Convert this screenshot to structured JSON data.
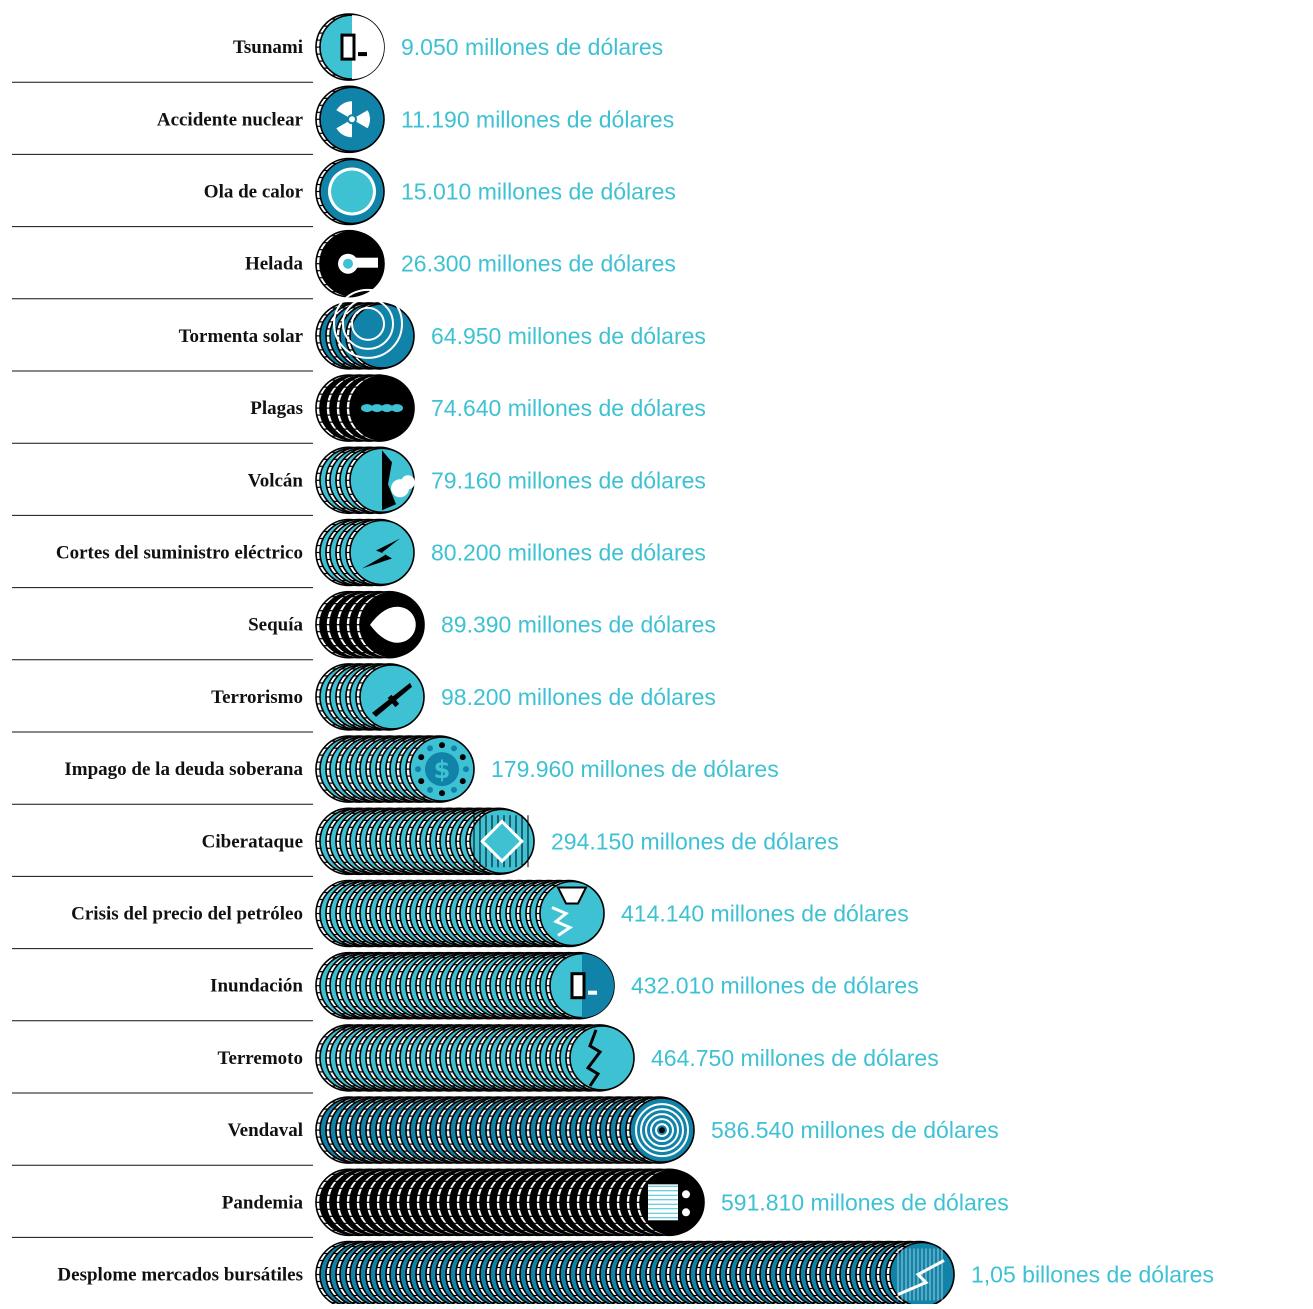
{
  "chart_data": {
    "type": "bar",
    "title": "",
    "xlabel": "",
    "ylabel": "",
    "orientation": "horizontal",
    "unit_step": 9050,
    "categories": [
      "Tsunami",
      "Accidente nuclear",
      "Ola de calor",
      "Helada",
      "Tormenta solar",
      "Plagas",
      "Volcán",
      "Cortes del suministro eléctrico",
      "Sequía",
      "Terrorismo",
      "Impago de la deuda soberana",
      "Ciberataque",
      "Crisis del precio del petróleo",
      "Inundación",
      "Terremoto",
      "Vendaval",
      "Pandemia",
      "Desplome mercados bursátiles"
    ],
    "values": [
      9050,
      11190,
      15010,
      26300,
      64950,
      74640,
      79160,
      80200,
      89390,
      98200,
      179960,
      294150,
      414140,
      432010,
      464750,
      586540,
      591810,
      1050000
    ],
    "value_labels": [
      "9.050 millones de dólares",
      "11.190 millones de dólares",
      "15.010 millones de dólares",
      "26.300 millones de dólares",
      "64.950 millones de dólares",
      "74.640 millones de dólares",
      "79.160 millones de dólares",
      "80.200 millones de dólares",
      "89.390 millones de dólares",
      "98.200 millones de dólares",
      "179.960 millones de dólares",
      "294.150 millones de dólares",
      "414.140 millones de dólares",
      "432.010 millones de dólares",
      "464.750 millones de dólares",
      "586.540 millones de dólares",
      "591.810 millones de dólares",
      "1,05 billones de dólares"
    ],
    "coin_colors": [
      "#3ec1d3",
      "#1283a8",
      "#1283a8",
      "#000000",
      "#1283a8",
      "#000000",
      "#3ec1d3",
      "#3ec1d3",
      "#000000",
      "#3ec1d3",
      "#3ec1d3",
      "#3ec1d3",
      "#3ec1d3",
      "#3ec1d3",
      "#3ec1d3",
      "#1283a8",
      "#000000",
      "#1283a8"
    ],
    "icons": [
      "building-wave-icon",
      "radiation-icon",
      "sun-icon",
      "thermometer-icon",
      "solar-flare-icon",
      "locust-icon",
      "volcano-icon",
      "lightning-icon",
      "drop-icon",
      "rifle-icon",
      "dollar-coins-icon",
      "circuit-icon",
      "oil-derrick-icon",
      "flooded-building-icon",
      "crack-icon",
      "hurricane-icon",
      "virus-face-icon",
      "stock-crash-icon"
    ],
    "grid": false,
    "legend": "none"
  },
  "colors": {
    "value_text": "#3ec1d3",
    "light_blue": "#3ec1d3",
    "dark_blue": "#1283a8",
    "black": "#000000"
  }
}
